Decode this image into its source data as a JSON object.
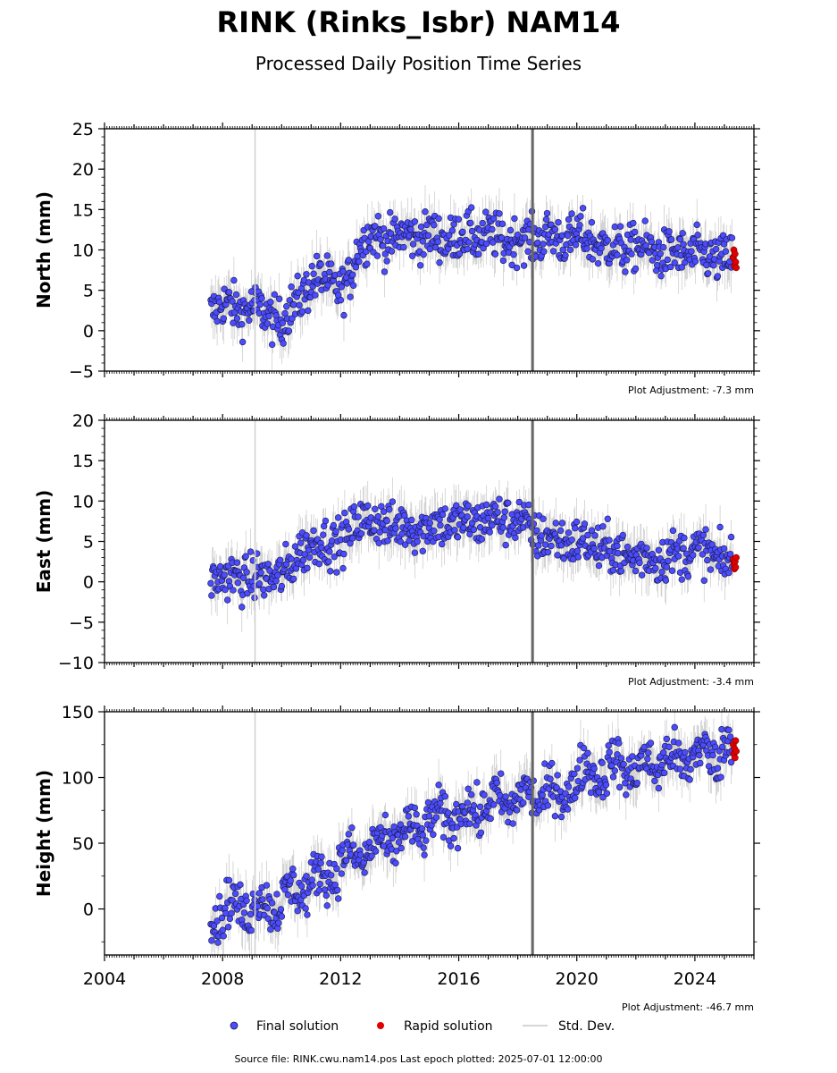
{
  "title": "RINK (Rinks_Isbr) NAM14",
  "subtitle": "Processed Daily Position Time Series",
  "footer": "Source file: RINK.cwu.nam14.pos  Last epoch plotted: 2025-07-01 12:00:00",
  "colors": {
    "final": "#4b4bff",
    "final_edge": "#1a1a40",
    "rapid": "#e00000",
    "stddev": "#c8c8c8",
    "event_dark": "#666666",
    "event_light": "#d0d0d0"
  },
  "legend": {
    "final": "Final solution",
    "rapid": "Rapid solution",
    "stddev": "Std. Dev."
  },
  "chart_data": [
    {
      "type": "scatter",
      "component": "north",
      "ylabel": "North (mm)",
      "adjustment": "Plot Adjustment: -7.3 mm",
      "xlim": [
        2004,
        2026
      ],
      "ylim": [
        -5,
        25
      ],
      "yticks": [
        -5,
        0,
        5,
        10,
        15,
        20,
        25
      ],
      "xticks": [
        2004,
        2008,
        2012,
        2016,
        2020,
        2024
      ],
      "event_lines": [
        {
          "x": 2009.1,
          "style": "light"
        },
        {
          "x": 2018.5,
          "style": "dark"
        }
      ],
      "series": [
        {
          "name": "Final solution",
          "x": [
            2007.6,
            2008.0,
            2008.5,
            2009.0,
            2009.5,
            2010.0,
            2010.3,
            2010.6,
            2011.0,
            2011.5,
            2012.0,
            2012.3,
            2012.6,
            2013.0,
            2013.5,
            2014.0,
            2014.5,
            2015.0,
            2015.5,
            2016.0,
            2016.5,
            2017.0,
            2017.5,
            2018.0,
            2018.5,
            2019.0,
            2019.5,
            2020.0,
            2020.5,
            2021.0,
            2021.5,
            2022.0,
            2022.5,
            2023.0,
            2023.5,
            2024.0,
            2024.5,
            2025.0,
            2025.3
          ],
          "y": [
            2.5,
            3.5,
            2.5,
            3,
            2,
            1,
            2.5,
            4,
            6,
            6.5,
            5,
            6,
            10.5,
            12,
            11,
            12,
            11.5,
            12,
            11,
            12,
            11.5,
            12,
            11,
            11.5,
            11,
            12,
            11,
            12,
            11,
            10.5,
            10,
            10.5,
            10,
            9.5,
            9.5,
            9.5,
            9,
            9,
            9
          ]
        },
        {
          "name": "Rapid solution",
          "x": [
            2025.3,
            2025.32,
            2025.34,
            2025.36,
            2025.38,
            2025.4
          ],
          "y": [
            9,
            10,
            8,
            9.5,
            8.5,
            7.8
          ]
        }
      ]
    },
    {
      "type": "scatter",
      "component": "east",
      "ylabel": "East (mm)",
      "adjustment": "Plot Adjustment: -3.4 mm",
      "xlim": [
        2004,
        2026
      ],
      "ylim": [
        -10,
        20
      ],
      "yticks": [
        -10,
        -5,
        0,
        5,
        10,
        15,
        20
      ],
      "xticks": [
        2004,
        2008,
        2012,
        2016,
        2020,
        2024
      ],
      "event_lines": [
        {
          "x": 2009.1,
          "style": "light"
        },
        {
          "x": 2018.5,
          "style": "dark"
        }
      ],
      "series": [
        {
          "name": "Final solution",
          "x": [
            2007.6,
            2008.0,
            2008.5,
            2009.0,
            2009.5,
            2010.0,
            2010.3,
            2010.6,
            2011.0,
            2011.5,
            2012.0,
            2012.3,
            2012.6,
            2013.0,
            2013.5,
            2014.0,
            2014.5,
            2015.0,
            2015.5,
            2016.0,
            2016.5,
            2017.0,
            2017.5,
            2018.0,
            2018.5,
            2019.0,
            2019.5,
            2020.0,
            2020.5,
            2021.0,
            2021.5,
            2022.0,
            2022.5,
            2023.0,
            2023.5,
            2024.0,
            2024.5,
            2025.0,
            2025.3
          ],
          "y": [
            0.5,
            0.5,
            0.5,
            0.5,
            0.5,
            1,
            1.5,
            4,
            4.5,
            5,
            5,
            5.5,
            8,
            7.5,
            7,
            7,
            6.5,
            7,
            7,
            7.5,
            7,
            8,
            7.5,
            8,
            6,
            5.5,
            5,
            5,
            4.5,
            4,
            3.5,
            3,
            3,
            3,
            3.5,
            4,
            3.5,
            2.5,
            2.5
          ]
        },
        {
          "name": "Rapid solution",
          "x": [
            2025.3,
            2025.32,
            2025.34,
            2025.36,
            2025.38,
            2025.4
          ],
          "y": [
            2.8,
            2.2,
            1.6,
            2.5,
            1.8,
            3
          ]
        }
      ]
    },
    {
      "type": "scatter",
      "component": "height",
      "ylabel": "Height (mm)",
      "adjustment": "Plot Adjustment: -46.7 mm",
      "xlim": [
        2004,
        2026
      ],
      "ylim": [
        -35,
        150
      ],
      "yticks": [
        0,
        50,
        100,
        150
      ],
      "xticks": [
        2004,
        2008,
        2012,
        2016,
        2020,
        2024
      ],
      "event_lines": [
        {
          "x": 2009.1,
          "style": "light"
        },
        {
          "x": 2018.5,
          "style": "dark"
        }
      ],
      "series": [
        {
          "name": "Final solution",
          "x": [
            2007.6,
            2008.0,
            2008.5,
            2009.0,
            2009.5,
            2010.0,
            2010.5,
            2011.0,
            2011.5,
            2012.0,
            2012.5,
            2013.0,
            2013.5,
            2014.0,
            2014.5,
            2015.0,
            2015.5,
            2016.0,
            2016.5,
            2017.0,
            2017.5,
            2018.0,
            2018.5,
            2019.0,
            2019.5,
            2020.0,
            2020.5,
            2021.0,
            2021.5,
            2022.0,
            2022.5,
            2023.0,
            2023.5,
            2024.0,
            2024.5,
            2025.0,
            2025.3
          ],
          "y": [
            0,
            -5,
            5,
            0,
            5,
            5,
            15,
            20,
            25,
            35,
            40,
            45,
            50,
            55,
            60,
            65,
            70,
            70,
            75,
            80,
            80,
            85,
            85,
            90,
            85,
            100,
            105,
            105,
            110,
            105,
            110,
            115,
            110,
            120,
            115,
            125,
            120
          ]
        },
        {
          "name": "Rapid solution",
          "x": [
            2025.3,
            2025.32,
            2025.34,
            2025.36,
            2025.38,
            2025.4
          ],
          "y": [
            125,
            118,
            122,
            115,
            128,
            120
          ]
        }
      ]
    }
  ]
}
